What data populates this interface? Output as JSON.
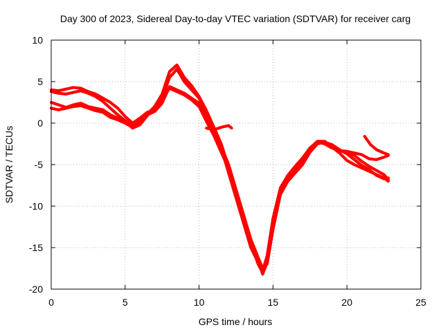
{
  "chart_data": {
    "type": "scatter",
    "title": "Day 300 of 2023, Sidereal Day-to-day VTEC variation (SDTVAR) for receiver carg",
    "xlabel": "GPS time / hours",
    "ylabel": "SDTVAR / TECUs",
    "xlim": [
      0,
      25
    ],
    "ylim": [
      -20,
      10
    ],
    "xticks": [
      "0",
      "5",
      "10",
      "15",
      "20",
      "25"
    ],
    "yticks": [
      "10",
      "5",
      "0",
      "-5",
      "-10",
      "-15",
      "-20"
    ],
    "grid": true,
    "color": "#ff0000",
    "series": [
      {
        "x": [
          0.0,
          0.5,
          1.0,
          1.5,
          2.0,
          2.5,
          3.0,
          3.5,
          4.0,
          4.5,
          5.0,
          5.5,
          6.0,
          6.5,
          7.0,
          7.5,
          8.0,
          8.5,
          9.0,
          9.5,
          10.0,
          10.5,
          11.0,
          11.5,
          12.0,
          12.5,
          13.0,
          13.5,
          14.0,
          14.3,
          14.6,
          15.0,
          15.5,
          16.0,
          16.5,
          17.0,
          17.5,
          18.0,
          18.5,
          19.0,
          19.5,
          20.0,
          20.5,
          21.0,
          21.5,
          22.0,
          22.5,
          22.8
        ],
        "y": [
          4.0,
          3.9,
          4.1,
          4.3,
          4.2,
          3.8,
          3.5,
          3.0,
          2.5,
          1.8,
          0.8,
          0.0,
          0.6,
          1.3,
          1.6,
          2.8,
          4.2,
          3.8,
          3.4,
          2.8,
          2.0,
          0.2,
          -1.5,
          -3.5,
          -5.5,
          -8.5,
          -11.5,
          -14.5,
          -17.0,
          -18.0,
          -16.5,
          -12.0,
          -8.0,
          -6.5,
          -5.5,
          -4.5,
          -3.0,
          -2.3,
          -2.5,
          -3.0,
          -3.3,
          -3.4,
          -3.6,
          -3.8,
          -4.3,
          -4.4,
          -4.1,
          -3.9
        ]
      },
      {
        "x": [
          0.0,
          0.5,
          1.0,
          1.5,
          2.0,
          2.5,
          3.0,
          3.5,
          4.0,
          4.5,
          5.0,
          5.5,
          6.0,
          6.5,
          7.0,
          7.5,
          8.0,
          8.5,
          9.0,
          9.5,
          10.0,
          10.5,
          11.0,
          11.5,
          12.0,
          12.5,
          13.0,
          13.5,
          14.0,
          14.3,
          14.6,
          15.0,
          15.5,
          16.0,
          16.5,
          17.0,
          17.5,
          18.0,
          18.5,
          19.0,
          19.5,
          20.0,
          20.5,
          21.0,
          21.5,
          22.0,
          22.5,
          22.8
        ],
        "y": [
          3.8,
          3.6,
          3.5,
          3.7,
          3.9,
          3.6,
          3.2,
          2.6,
          1.8,
          1.0,
          0.3,
          -0.4,
          0.2,
          1.0,
          1.4,
          2.4,
          4.4,
          4.0,
          3.6,
          3.0,
          2.4,
          0.8,
          -0.8,
          -2.8,
          -5.0,
          -8.0,
          -11.0,
          -14.0,
          -16.2,
          -17.5,
          -17.0,
          -12.8,
          -8.6,
          -7.0,
          -6.0,
          -5.0,
          -3.5,
          -2.5,
          -2.3,
          -2.6,
          -3.2,
          -3.7,
          -4.4,
          -5.1,
          -5.6,
          -6.3,
          -6.7,
          -6.6
        ]
      },
      {
        "x": [
          0.0,
          0.5,
          1.0,
          1.5,
          2.0,
          2.5,
          3.0,
          3.5,
          4.0,
          4.5,
          5.0,
          5.5,
          6.0,
          6.5,
          7.0,
          7.5,
          8.0,
          8.5,
          9.0,
          9.5,
          10.0,
          10.5,
          11.0,
          11.5,
          12.0,
          12.5,
          13.0,
          13.5,
          14.0,
          14.3,
          14.6,
          15.0,
          15.5,
          16.0,
          16.5,
          17.0,
          17.5,
          18.0,
          18.5,
          19.0,
          19.5,
          20.0,
          20.5,
          21.0,
          21.5,
          22.0,
          22.5,
          22.8
        ],
        "y": [
          2.5,
          2.2,
          1.9,
          2.2,
          2.4,
          2.0,
          1.8,
          1.6,
          1.0,
          0.6,
          0.2,
          -0.6,
          -0.2,
          0.9,
          1.8,
          3.0,
          5.5,
          6.5,
          5.0,
          4.0,
          3.0,
          1.0,
          -1.0,
          -3.0,
          -6.0,
          -9.0,
          -12.0,
          -15.0,
          -16.8,
          -17.8,
          -16.0,
          -11.5,
          -7.8,
          -6.3,
          -5.2,
          -4.2,
          -3.0,
          -2.2,
          -2.2,
          -2.9,
          -3.6,
          -4.5,
          -5.0,
          -5.4,
          -5.8,
          -6.2,
          -6.6,
          -7.0
        ]
      },
      {
        "x": [
          0.0,
          0.5,
          1.0,
          1.5,
          2.0,
          2.5,
          3.0,
          3.5,
          4.0,
          4.5,
          5.0,
          5.5,
          6.0,
          6.5,
          7.0,
          7.5,
          8.0,
          8.5,
          9.0,
          9.5,
          10.0,
          10.5,
          11.0,
          11.5,
          12.0,
          12.5,
          13.0,
          13.5,
          14.0,
          14.3,
          14.6,
          15.0,
          15.5,
          16.0,
          16.5,
          17.0,
          17.5,
          18.0,
          18.5,
          19.0,
          19.5,
          20.0,
          20.5,
          21.0,
          21.5,
          22.0,
          22.5,
          22.8
        ],
        "y": [
          1.8,
          1.6,
          1.8,
          2.0,
          2.1,
          1.8,
          1.5,
          1.3,
          0.7,
          0.4,
          0.0,
          -0.5,
          -0.1,
          1.1,
          2.0,
          3.5,
          6.2,
          7.0,
          5.5,
          4.5,
          3.2,
          1.5,
          -0.5,
          -2.5,
          -5.3,
          -8.5,
          -11.5,
          -14.5,
          -16.5,
          -18.2,
          -16.8,
          -12.4,
          -8.2,
          -6.7,
          -5.6,
          -4.6,
          -3.2,
          -2.4,
          -2.4,
          -2.8,
          -3.3,
          -3.6,
          -3.9,
          -4.6,
          -5.2,
          -5.7,
          -6.2,
          -6.8
        ]
      },
      {
        "x": [
          10.5,
          11.0,
          11.5,
          12.0,
          12.2
        ],
        "y": [
          -0.6,
          -0.8,
          -0.5,
          -0.3,
          -0.6
        ]
      },
      {
        "x": [
          21.2,
          21.6,
          22.0,
          22.5,
          22.8
        ],
        "y": [
          -1.6,
          -2.6,
          -3.2,
          -3.6,
          -3.8
        ]
      }
    ]
  }
}
